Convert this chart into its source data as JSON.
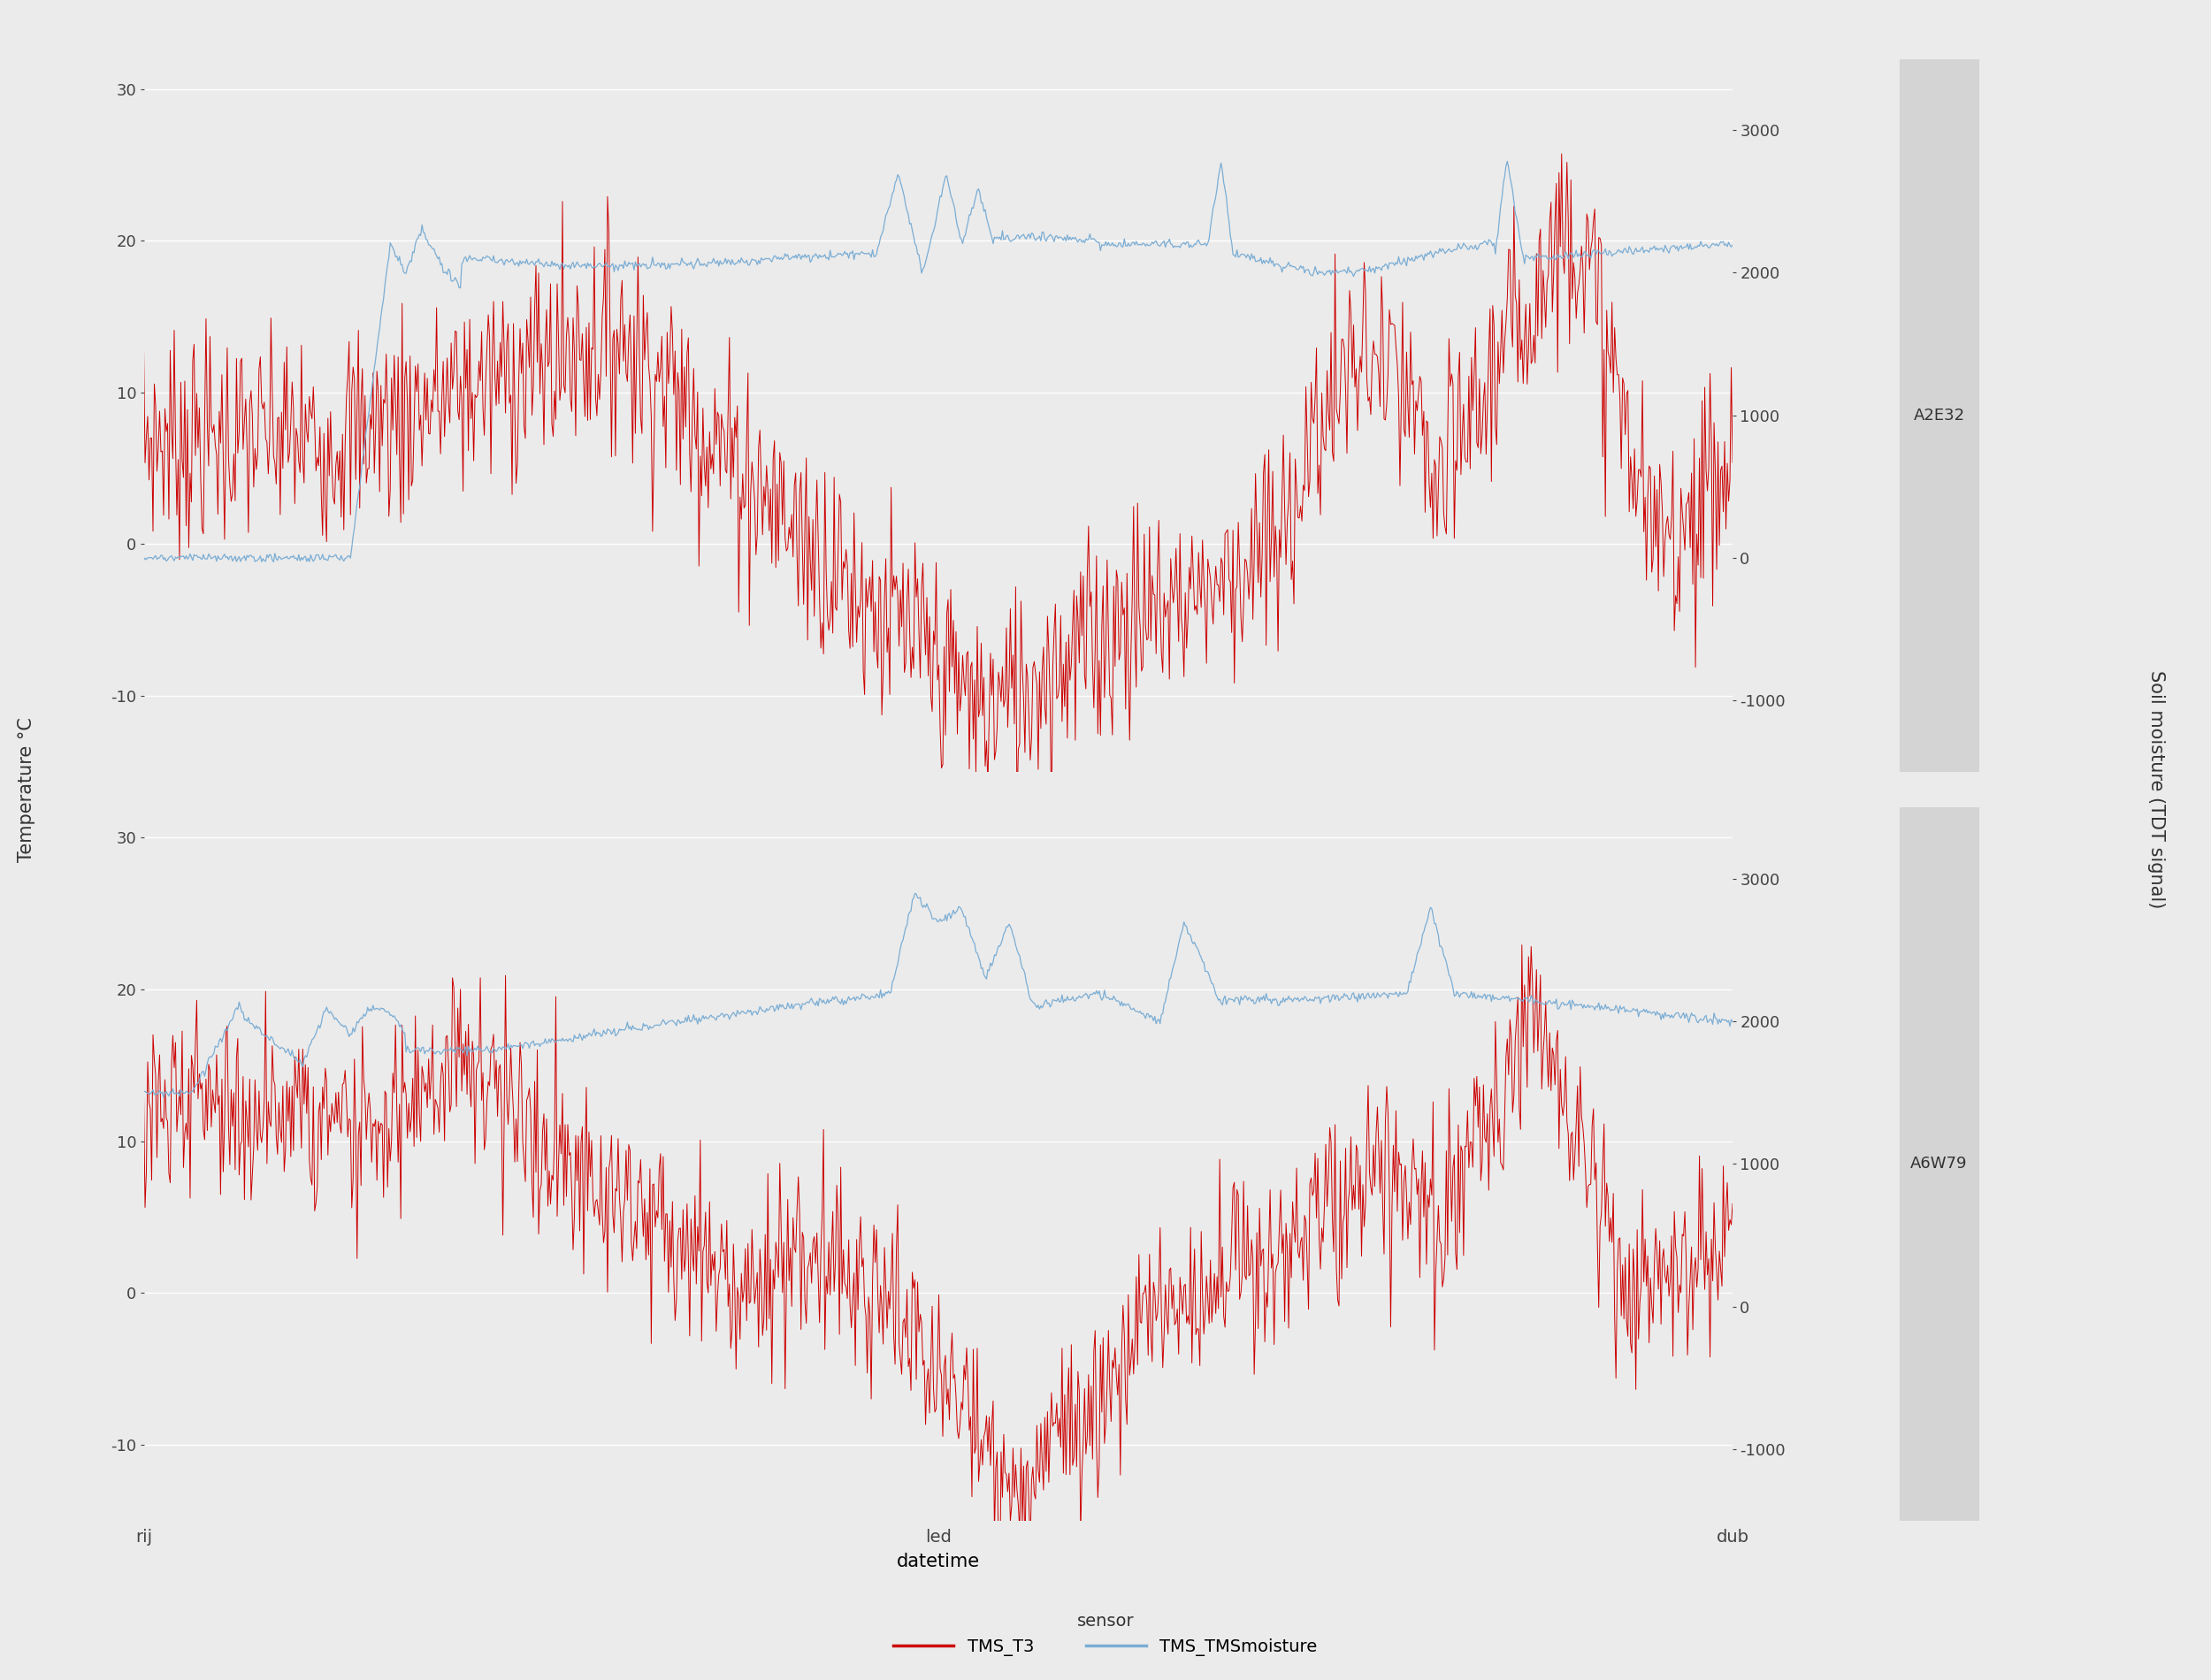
{
  "xlabel": "datetime",
  "ylabel_left": "Temperature °C",
  "ylabel_right": "Soil moisture (TDT signal)",
  "panel_labels": [
    "A2E32",
    "A6W79"
  ],
  "x_tick_labels": [
    "rij",
    "led",
    "dub"
  ],
  "x_tick_positions": [
    0.0,
    0.5,
    1.0
  ],
  "ylim_temp": [
    -15,
    32
  ],
  "ylim_moisture": [
    -1500,
    3500
  ],
  "yticks_temp": [
    -10,
    0,
    10,
    20,
    30
  ],
  "yticks_moisture": [
    -1000,
    0,
    1000,
    2000,
    3000
  ],
  "color_temp": "#cc0000",
  "color_moisture": "#7badd4",
  "bg_color": "#ebebeb",
  "panel_bg": "#ebebeb",
  "strip_bg": "#d4d4d4",
  "legend_items": [
    "TMS_T3",
    "TMS_TMSmoisture"
  ],
  "n_points": 1200,
  "seed": 7
}
